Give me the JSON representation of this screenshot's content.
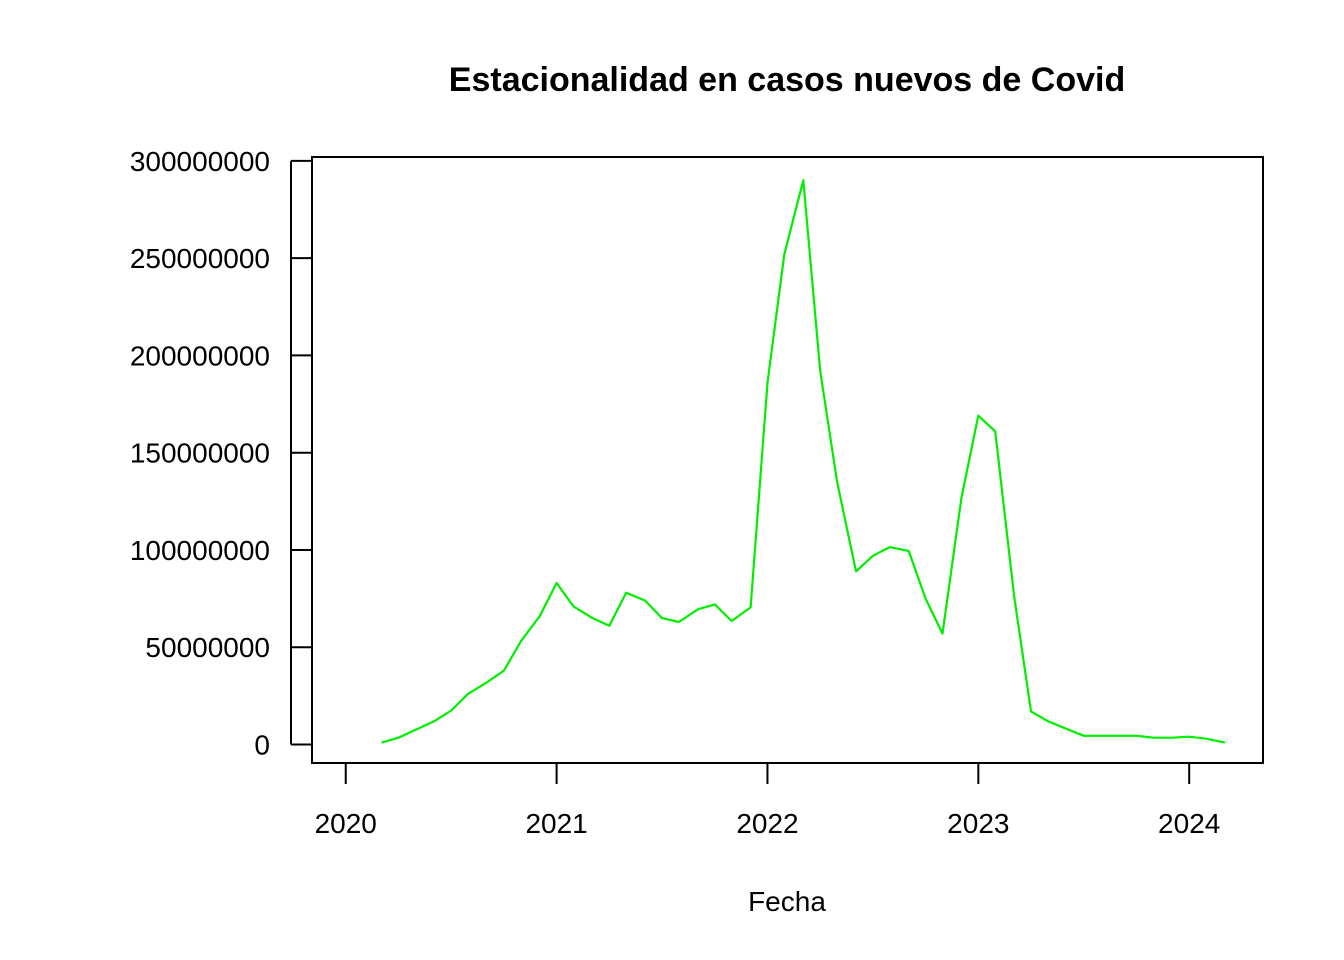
{
  "chart_data": {
    "type": "line",
    "title": "Estacionalidad en casos nuevos de Covid",
    "xlabel": "Fecha",
    "ylabel": "",
    "xlim": [
      2019.84,
      2024.35
    ],
    "ylim": [
      -9500000,
      302000000
    ],
    "grid": false,
    "legend": "none",
    "x_ticks": [
      2020,
      2021,
      2022,
      2023,
      2024
    ],
    "x_tick_labels": [
      "2020",
      "2021",
      "2022",
      "2023",
      "2024"
    ],
    "y_ticks": [
      0,
      50000000,
      100000000,
      150000000,
      200000000,
      250000000,
      300000000
    ],
    "y_tick_labels": [
      "0",
      "50000000",
      "100000000",
      "150000000",
      "200000000",
      "250000000",
      "300000000"
    ],
    "series": [
      {
        "color": "#00ee00",
        "x": [
          2020.17,
          2020.25,
          2020.33,
          2020.42,
          2020.5,
          2020.58,
          2020.67,
          2020.75,
          2020.83,
          2020.92,
          2021.0,
          2021.08,
          2021.17,
          2021.25,
          2021.33,
          2021.42,
          2021.5,
          2021.58,
          2021.67,
          2021.75,
          2021.83,
          2021.92,
          2022.0,
          2022.08,
          2022.17,
          2022.25,
          2022.33,
          2022.42,
          2022.5,
          2022.58,
          2022.67,
          2022.75,
          2022.83,
          2022.92,
          2023.0,
          2023.08,
          2023.17,
          2023.25,
          2023.33,
          2023.42,
          2023.5,
          2023.58,
          2023.67,
          2023.75,
          2023.83,
          2023.92,
          2024.0,
          2024.08,
          2024.17
        ],
        "y": [
          1000000,
          3500000,
          7500000,
          12000000,
          17500000,
          26000000,
          32000000,
          38000000,
          53000000,
          66000000,
          83000000,
          71000000,
          65000000,
          61000000,
          78000000,
          74000000,
          65000000,
          63000000,
          69500000,
          72000000,
          63500000,
          70500000,
          186000000,
          252000000,
          290000000,
          192000000,
          135000000,
          89000000,
          97000000,
          101500000,
          99500000,
          75000000,
          57000000,
          127000000,
          169000000,
          161000000,
          76000000,
          17000000,
          12000000,
          8000000,
          4500000,
          4500000,
          4500000,
          4500000,
          3500000,
          3500000,
          4000000,
          3000000,
          1000000
        ]
      }
    ]
  }
}
